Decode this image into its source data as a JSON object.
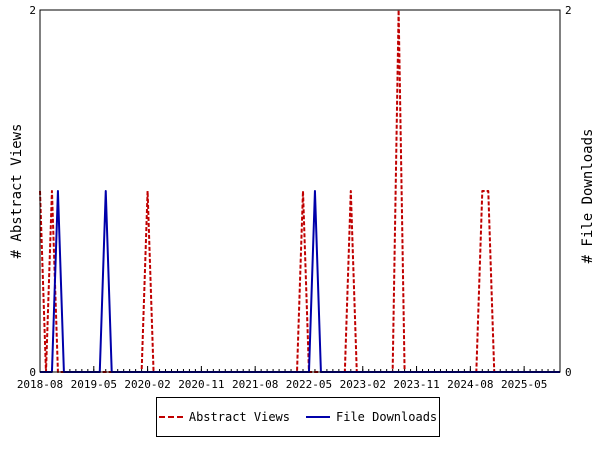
{
  "chart_data": {
    "type": "line",
    "xlabel": "",
    "ylabel_left": "# Abstract Views",
    "ylabel_right": "# File Downloads",
    "xlim": [
      "2018-08",
      "2025-11"
    ],
    "ylim": [
      0,
      2
    ],
    "y_ticks": [
      0,
      2
    ],
    "x_tick_labels": [
      "2018-08",
      "2019-05",
      "2020-02",
      "2020-11",
      "2021-08",
      "2022-05",
      "2023-02",
      "2023-11",
      "2024-08",
      "2025-05"
    ],
    "grid": false,
    "legend_position": "bottom-center",
    "series": [
      {
        "name": "Abstract Views",
        "color": "#c00000",
        "style": "dashed",
        "points": [
          [
            "2018-08",
            1
          ],
          [
            "2018-09",
            0
          ],
          [
            "2018-10",
            1
          ],
          [
            "2018-11",
            0
          ],
          [
            "2018-12",
            0
          ],
          [
            "2020-01",
            0
          ],
          [
            "2020-02",
            1
          ],
          [
            "2020-03",
            0
          ],
          [
            "2022-03",
            0
          ],
          [
            "2022-04",
            1
          ],
          [
            "2022-05",
            0
          ],
          [
            "2022-11",
            0
          ],
          [
            "2022-12",
            1
          ],
          [
            "2023-01",
            0
          ],
          [
            "2023-07",
            0
          ],
          [
            "2023-08",
            2
          ],
          [
            "2023-09",
            0
          ],
          [
            "2024-09",
            0
          ],
          [
            "2024-10",
            1
          ],
          [
            "2024-11",
            1
          ],
          [
            "2024-12",
            0
          ],
          [
            "2025-11",
            0
          ]
        ]
      },
      {
        "name": "File Downloads",
        "color": "#0000aa",
        "style": "solid",
        "points": [
          [
            "2018-08",
            0
          ],
          [
            "2018-10",
            0
          ],
          [
            "2018-11",
            1
          ],
          [
            "2018-12",
            0
          ],
          [
            "2019-06",
            0
          ],
          [
            "2019-07",
            1
          ],
          [
            "2019-08",
            0
          ],
          [
            "2022-05",
            0
          ],
          [
            "2022-06",
            1
          ],
          [
            "2022-07",
            0
          ],
          [
            "2025-11",
            0
          ]
        ]
      }
    ]
  }
}
